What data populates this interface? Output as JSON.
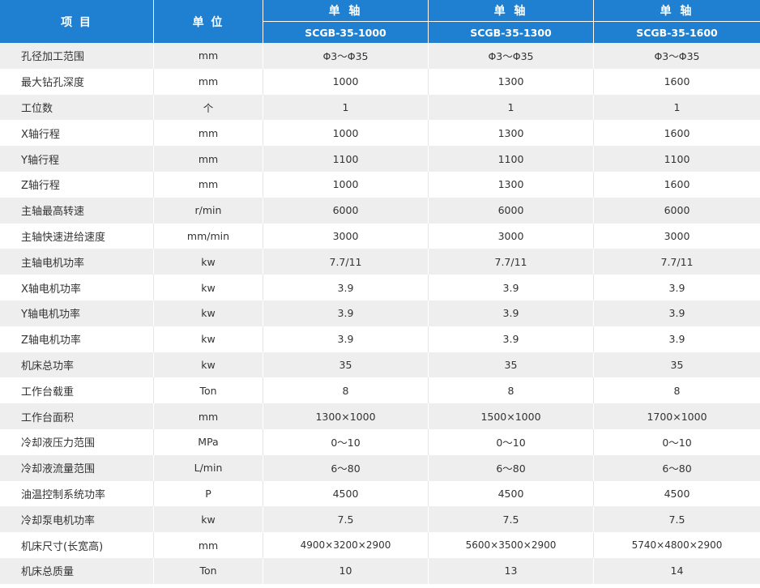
{
  "header": {
    "item": "项 目",
    "unit": "单 位",
    "groups": [
      "单 轴",
      "单 轴",
      "单 轴"
    ],
    "models": [
      "SCGB-35-1000",
      "SCGB-35-1300",
      "SCGB-35-1600"
    ]
  },
  "rows": [
    {
      "item": "孔径加工范围",
      "unit": "mm",
      "values": [
        "Φ3～Φ35",
        "Φ3～Φ35",
        "Φ3～Φ35"
      ]
    },
    {
      "item": "最大钻孔深度",
      "unit": "mm",
      "values": [
        "1000",
        "1300",
        "1600"
      ]
    },
    {
      "item": "工位数",
      "unit": "个",
      "values": [
        "1",
        "1",
        "1"
      ]
    },
    {
      "item": "X轴行程",
      "unit": "mm",
      "values": [
        "1000",
        "1300",
        "1600"
      ]
    },
    {
      "item": "Y轴行程",
      "unit": "mm",
      "values": [
        "1100",
        "1100",
        "1100"
      ]
    },
    {
      "item": "Z轴行程",
      "unit": "mm",
      "values": [
        "1000",
        "1300",
        "1600"
      ]
    },
    {
      "item": "主轴最高转速",
      "unit": "r/min",
      "values": [
        "6000",
        "6000",
        "6000"
      ]
    },
    {
      "item": "主轴快速进给速度",
      "unit": "mm/min",
      "values": [
        "3000",
        "3000",
        "3000"
      ]
    },
    {
      "item": "主轴电机功率",
      "unit": "kw",
      "values": [
        "7.7/11",
        "7.7/11",
        "7.7/11"
      ]
    },
    {
      "item": "X轴电机功率",
      "unit": "kw",
      "values": [
        "3.9",
        "3.9",
        "3.9"
      ]
    },
    {
      "item": "Y轴电机功率",
      "unit": "kw",
      "values": [
        "3.9",
        "3.9",
        "3.9"
      ]
    },
    {
      "item": "Z轴电机功率",
      "unit": "kw",
      "values": [
        "3.9",
        "3.9",
        "3.9"
      ]
    },
    {
      "item": "机床总功率",
      "unit": "kw",
      "values": [
        "35",
        "35",
        "35"
      ]
    },
    {
      "item": "工作台载重",
      "unit": "Ton",
      "values": [
        "8",
        "8",
        "8"
      ]
    },
    {
      "item": "工作台面积",
      "unit": "mm",
      "values": [
        "1300×1000",
        "1500×1000",
        "1700×1000"
      ]
    },
    {
      "item": "冷却液压力范围",
      "unit": "MPa",
      "values": [
        "0～10",
        "0～10",
        "0～10"
      ]
    },
    {
      "item": "冷却液流量范围",
      "unit": "L/min",
      "values": [
        "6～80",
        "6～80",
        "6～80"
      ]
    },
    {
      "item": "油温控制系统功率",
      "unit": "P",
      "values": [
        "4500",
        "4500",
        "4500"
      ]
    },
    {
      "item": "冷却泵电机功率",
      "unit": "kw",
      "values": [
        "7.5",
        "7.5",
        "7.5"
      ]
    },
    {
      "item": "机床尺寸(长宽高)",
      "unit": "mm",
      "values": [
        "4900×3200×2900",
        "5600×3500×2900",
        "5740×4800×2900"
      ]
    },
    {
      "item": "机床总质量",
      "unit": "Ton",
      "values": [
        "10",
        "13",
        "14"
      ]
    }
  ],
  "colors": {
    "header_bg": "#1f7fd0",
    "header_text": "#ffffff",
    "row_alt_bg": "#eeeeee",
    "body_text": "#333333"
  }
}
